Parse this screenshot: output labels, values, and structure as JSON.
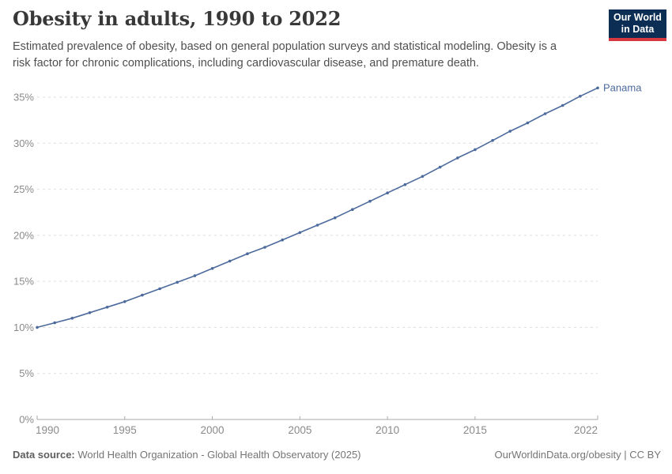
{
  "header": {
    "title": "Obesity in adults, 1990 to 2022",
    "subtitle": "Estimated prevalence of obesity, based on general population surveys and statistical modeling. Obesity is a risk factor for chronic complications, including cardiovascular disease, and premature death.",
    "logo": {
      "line1": "Our World",
      "line2": "in Data",
      "bg_color": "#0D2E54",
      "bar_color": "#D8383F"
    }
  },
  "chart_data": {
    "type": "line",
    "title": "Obesity in adults, 1990 to 2022",
    "xlabel": "",
    "ylabel": "",
    "x": [
      1990,
      1991,
      1992,
      1993,
      1994,
      1995,
      1996,
      1997,
      1998,
      1999,
      2000,
      2001,
      2002,
      2003,
      2004,
      2005,
      2006,
      2007,
      2008,
      2009,
      2010,
      2011,
      2012,
      2013,
      2014,
      2015,
      2016,
      2017,
      2018,
      2019,
      2020,
      2021,
      2022
    ],
    "series": [
      {
        "name": "Panama",
        "color": "#4C6A9C",
        "values": [
          10.0,
          10.5,
          11.0,
          11.6,
          12.2,
          12.8,
          13.5,
          14.2,
          14.9,
          15.6,
          16.4,
          17.2,
          18.0,
          18.7,
          19.5,
          20.3,
          21.1,
          21.9,
          22.8,
          23.7,
          24.6,
          25.5,
          26.4,
          27.4,
          28.4,
          29.3,
          30.3,
          31.3,
          32.2,
          33.2,
          34.1,
          35.1,
          36.0
        ]
      }
    ],
    "x_ticks": [
      1990,
      1995,
      2000,
      2005,
      2010,
      2015,
      2022
    ],
    "y_ticks": [
      0,
      5,
      10,
      15,
      20,
      25,
      30,
      35
    ],
    "y_tick_suffix": "%",
    "xlim": [
      1990,
      2022
    ],
    "ylim": [
      0,
      35
    ],
    "grid": "horizontal-dashed",
    "legend": "end-of-line-label",
    "gridline_color": "#dddddd",
    "axis_color": "#a8a8a8",
    "tick_label_color": "#8a8a8a"
  },
  "footer": {
    "datasource_label": "Data source:",
    "datasource_text": " World Health Organization - Global Health Observatory (2025)",
    "credit": "OurWorldinData.org/obesity | CC BY"
  }
}
